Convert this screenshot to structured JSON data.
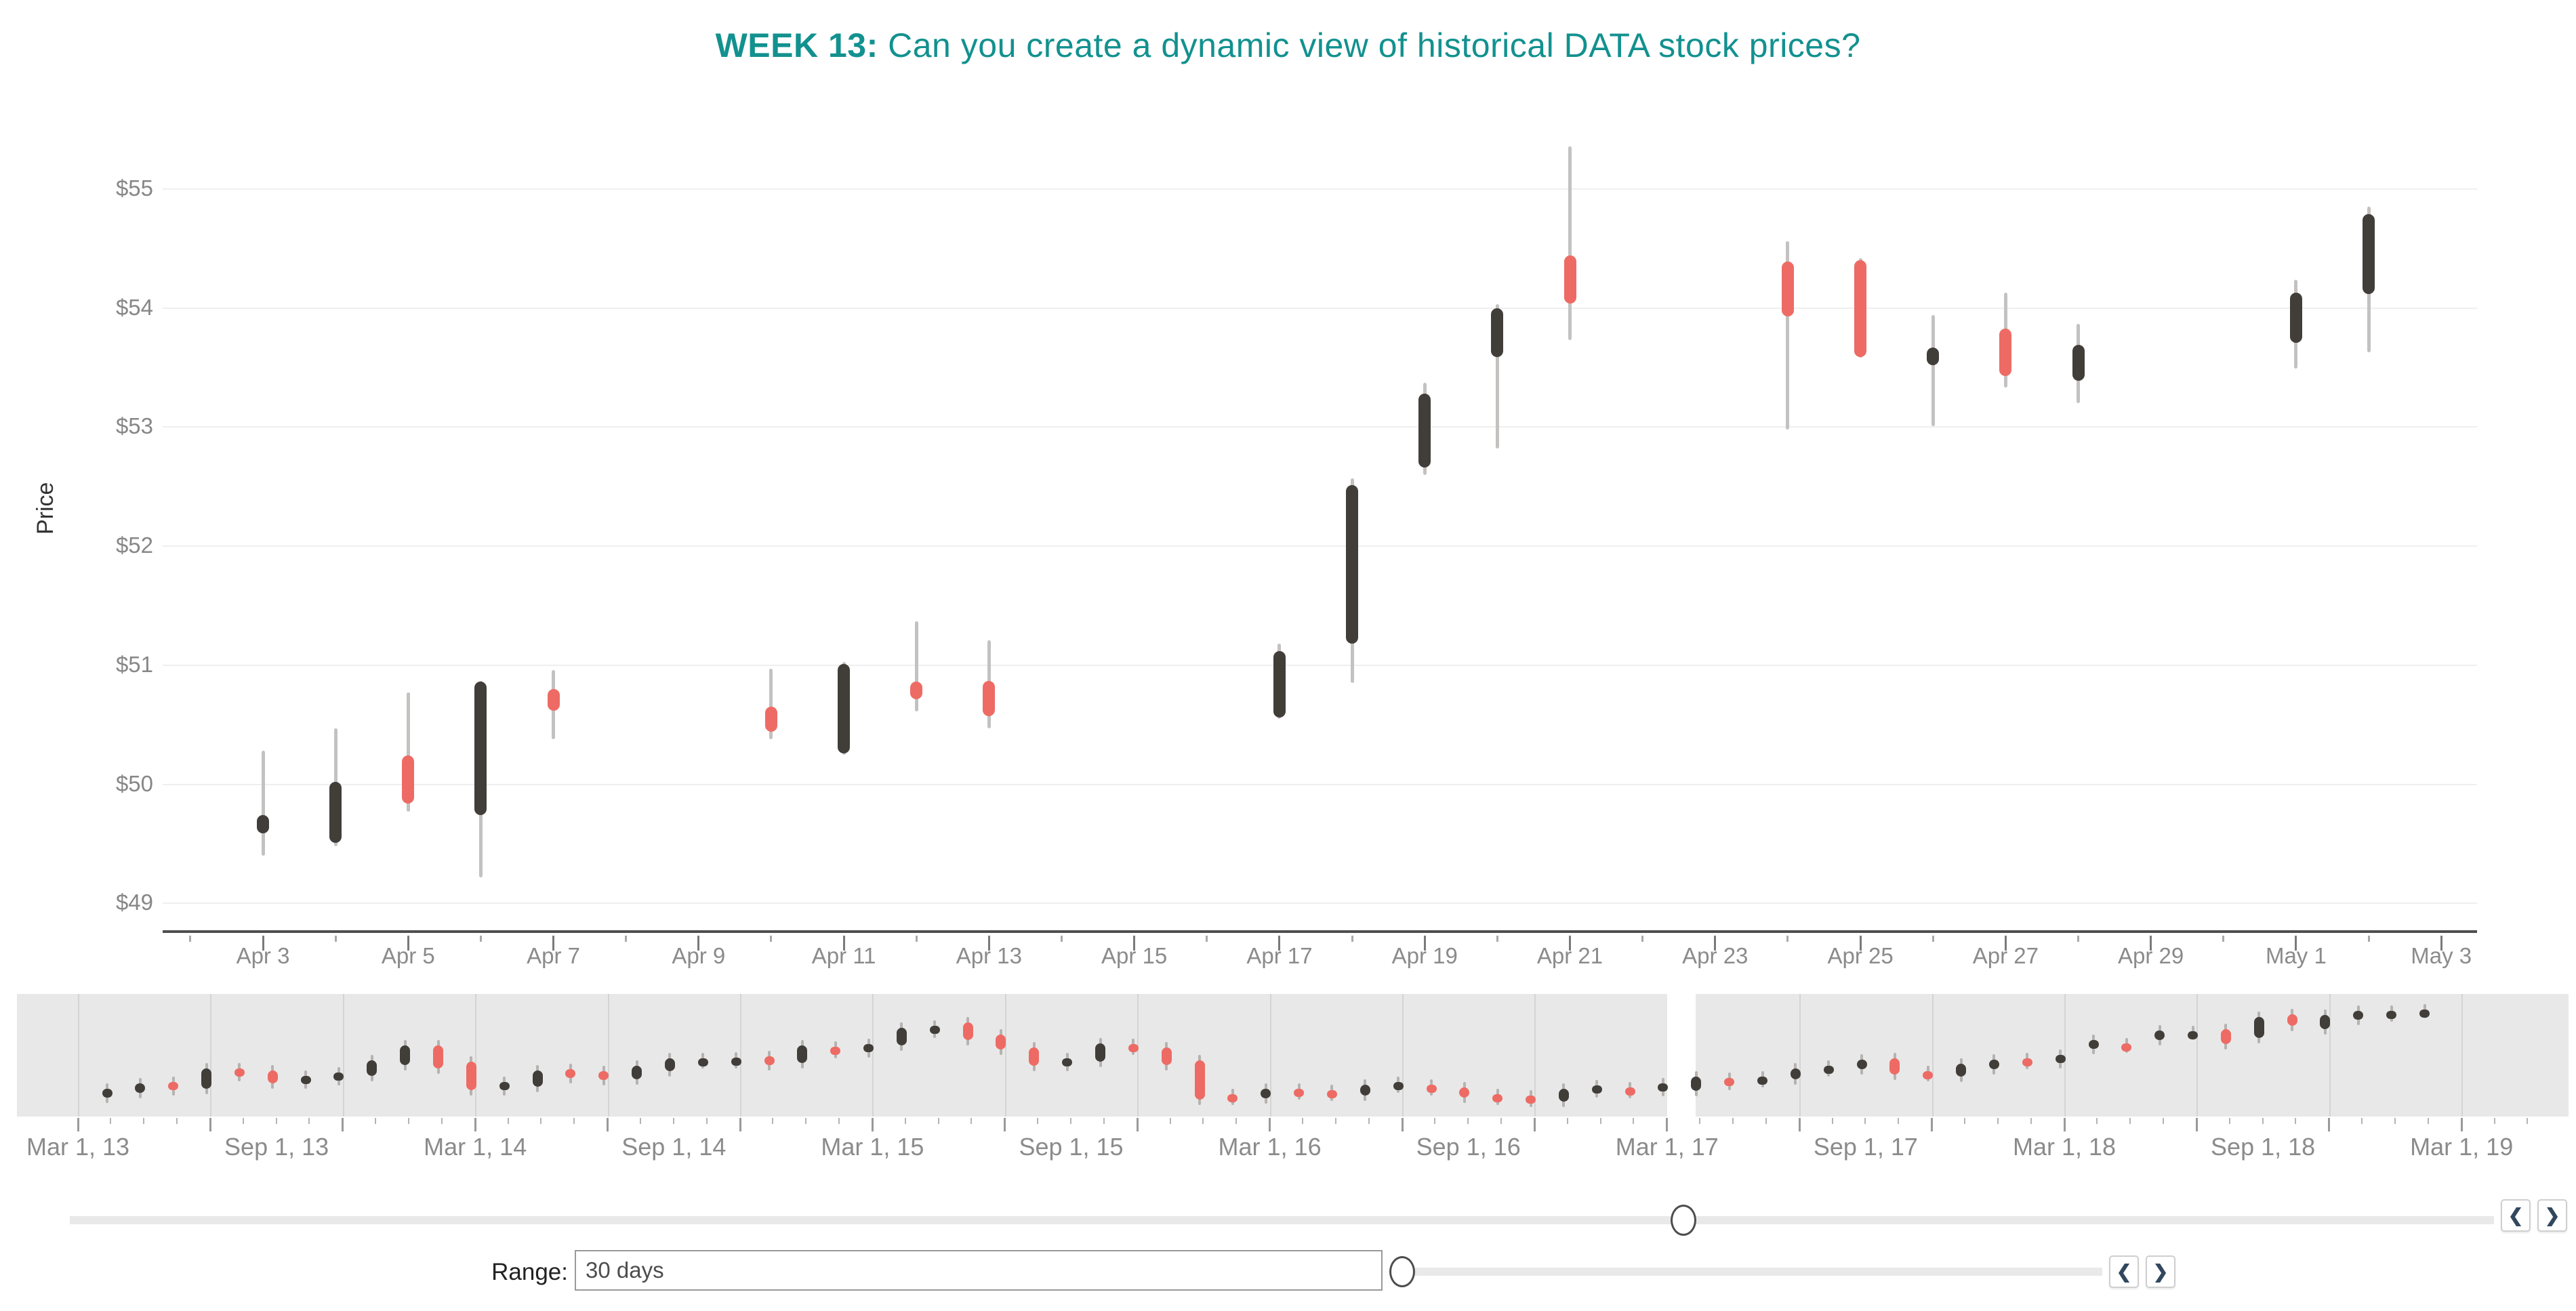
{
  "title": {
    "week_label": "WEEK 13:",
    "question": " Can you create a dynamic view of historical DATA stock prices?"
  },
  "colors": {
    "accent_teal": "#12918f",
    "candle_up": "#413e3a",
    "candle_down": "#ed6b64",
    "wick": "#c4c2c0",
    "grid": "#efefef",
    "axis_line": "#4f4f4f",
    "label_gray": "#8b8b8b",
    "mini_bg": "#e8e8e8",
    "chevron_navy": "#31475e"
  },
  "chart_data": [
    {
      "type": "candlestick",
      "title": "DATA stock daily prices (main view)",
      "ylabel": "Price",
      "ylim": [
        49,
        55.5
      ],
      "y_ticks": [
        "$55",
        "$54",
        "$53",
        "$52",
        "$51",
        "$50",
        "$49"
      ],
      "y_tick_values": [
        55,
        54,
        53,
        52,
        51,
        50,
        49
      ],
      "x_tick_labels": [
        "Apr 3",
        "Apr 5",
        "Apr 7",
        "Apr 9",
        "Apr 11",
        "Apr 13",
        "Apr 15",
        "Apr 17",
        "Apr 19",
        "Apr 21",
        "Apr 23",
        "Apr 25",
        "Apr 27",
        "Apr 29",
        "May 1",
        "May 3"
      ],
      "grid": true,
      "candles": [
        {
          "date": "Apr 3",
          "day": 0,
          "o": 49.59,
          "h": 50.28,
          "l": 49.4,
          "c": 49.74,
          "dir": "up"
        },
        {
          "date": "Apr 4",
          "day": 1,
          "o": 49.51,
          "h": 50.47,
          "l": 49.48,
          "c": 50.02,
          "dir": "up"
        },
        {
          "date": "Apr 5",
          "day": 2,
          "o": 50.24,
          "h": 50.77,
          "l": 49.77,
          "c": 49.84,
          "dir": "down"
        },
        {
          "date": "Apr 6",
          "day": 3,
          "o": 49.74,
          "h": 50.87,
          "l": 49.22,
          "c": 50.86,
          "dir": "up"
        },
        {
          "date": "Apr 7",
          "day": 4,
          "o": 50.8,
          "h": 50.96,
          "l": 50.38,
          "c": 50.62,
          "dir": "down"
        },
        {
          "date": "Apr 10",
          "day": 7,
          "o": 50.65,
          "h": 50.97,
          "l": 50.38,
          "c": 50.44,
          "dir": "down"
        },
        {
          "date": "Apr 11",
          "day": 8,
          "o": 50.26,
          "h": 51.03,
          "l": 50.25,
          "c": 51.01,
          "dir": "up"
        },
        {
          "date": "Apr 12",
          "day": 9,
          "o": 50.86,
          "h": 51.37,
          "l": 50.61,
          "c": 50.84,
          "dir": "down"
        },
        {
          "date": "Apr 13",
          "day": 10,
          "o": 50.87,
          "h": 51.21,
          "l": 50.47,
          "c": 50.57,
          "dir": "down"
        },
        {
          "date": "Apr 17",
          "day": 14,
          "o": 50.56,
          "h": 51.18,
          "l": 50.55,
          "c": 51.12,
          "dir": "up"
        },
        {
          "date": "Apr 18",
          "day": 15,
          "o": 51.18,
          "h": 52.57,
          "l": 50.85,
          "c": 52.51,
          "dir": "up"
        },
        {
          "date": "Apr 19",
          "day": 16,
          "o": 52.66,
          "h": 53.37,
          "l": 52.6,
          "c": 53.28,
          "dir": "up"
        },
        {
          "date": "Apr 20",
          "day": 17,
          "o": 53.59,
          "h": 54.03,
          "l": 52.82,
          "c": 54.0,
          "dir": "up"
        },
        {
          "date": "Apr 21",
          "day": 18,
          "o": 54.44,
          "h": 55.36,
          "l": 53.73,
          "c": 54.04,
          "dir": "down"
        },
        {
          "date": "Apr 24",
          "day": 21,
          "o": 54.39,
          "h": 54.56,
          "l": 52.98,
          "c": 53.93,
          "dir": "down"
        },
        {
          "date": "Apr 25",
          "day": 22,
          "o": 54.4,
          "h": 54.42,
          "l": 53.58,
          "c": 53.59,
          "dir": "down"
        },
        {
          "date": "Apr 26",
          "day": 23,
          "o": 53.56,
          "h": 53.94,
          "l": 53.01,
          "c": 53.67,
          "dir": "up"
        },
        {
          "date": "Apr 27",
          "day": 24,
          "o": 53.83,
          "h": 54.13,
          "l": 53.33,
          "c": 53.43,
          "dir": "down"
        },
        {
          "date": "Apr 28",
          "day": 25,
          "o": 53.39,
          "h": 53.87,
          "l": 53.2,
          "c": 53.69,
          "dir": "up"
        },
        {
          "date": "May 1",
          "day": 28,
          "o": 53.71,
          "h": 54.24,
          "l": 53.49,
          "c": 54.13,
          "dir": "up"
        },
        {
          "date": "May 2",
          "day": 29,
          "o": 54.12,
          "h": 54.85,
          "l": 53.63,
          "c": 54.79,
          "dir": "up"
        }
      ]
    },
    {
      "type": "candlestick",
      "title": "DATA stock monthly overview (Mar 2013 - Mar 2019)",
      "units": "percent-of-panel-height (body low/high)",
      "x_tick_labels": [
        "Mar 1, 13",
        "Sep 1, 13",
        "Mar 1, 14",
        "Sep 1, 14",
        "Mar 1, 15",
        "Sep 1, 15",
        "Mar 1, 16",
        "Sep 1, 16",
        "Mar 1, 17",
        "Sep 1, 17",
        "Mar 1, 18",
        "Sep 1, 18",
        "Mar 1, 19"
      ],
      "candles": [
        {
          "m": "May 13",
          "lo": 12,
          "hi": 20,
          "dir": "up"
        },
        {
          "m": "Jun 13",
          "lo": 16,
          "hi": 25,
          "dir": "up"
        },
        {
          "m": "Jul 13",
          "lo": 19,
          "hi": 26,
          "dir": "down"
        },
        {
          "m": "Aug 13",
          "lo": 20,
          "hi": 39,
          "dir": "up"
        },
        {
          "m": "Sep 13",
          "lo": 32,
          "hi": 39,
          "dir": "down"
        },
        {
          "m": "Oct 13",
          "lo": 25,
          "hi": 37,
          "dir": "down"
        },
        {
          "m": "Nov 13",
          "lo": 25,
          "hi": 32,
          "dir": "up"
        },
        {
          "m": "Dec 13",
          "lo": 28,
          "hi": 35,
          "dir": "up"
        },
        {
          "m": "Jan 14",
          "lo": 32,
          "hi": 46,
          "dir": "up"
        },
        {
          "m": "Feb 14",
          "lo": 42,
          "hi": 60,
          "dir": "up"
        },
        {
          "m": "Mar 14",
          "lo": 39,
          "hi": 60,
          "dir": "down"
        },
        {
          "m": "Apr 14",
          "lo": 19,
          "hi": 45,
          "dir": "down"
        },
        {
          "m": "May 14",
          "lo": 19,
          "hi": 26,
          "dir": "up"
        },
        {
          "m": "Jun 14",
          "lo": 22,
          "hi": 37,
          "dir": "up"
        },
        {
          "m": "Jul 14",
          "lo": 30,
          "hi": 38,
          "dir": "down"
        },
        {
          "m": "Aug 14",
          "lo": 28,
          "hi": 36,
          "dir": "down"
        },
        {
          "m": "Sep 14",
          "lo": 29,
          "hi": 41,
          "dir": "up"
        },
        {
          "m": "Oct 14",
          "lo": 36,
          "hi": 48,
          "dir": "up"
        },
        {
          "m": "Nov 14",
          "lo": 44,
          "hi": 48,
          "dir": "up"
        },
        {
          "m": "Dec 14",
          "lo": 44,
          "hi": 49,
          "dir": "up"
        },
        {
          "m": "Jan 15",
          "lo": 42,
          "hi": 50,
          "dir": "down"
        },
        {
          "m": "Feb 15",
          "lo": 44,
          "hi": 60,
          "dir": "up"
        },
        {
          "m": "Mar 15",
          "lo": 53,
          "hi": 59,
          "dir": "down"
        },
        {
          "m": "Apr 15",
          "lo": 54,
          "hi": 61,
          "dir": "up"
        },
        {
          "m": "May 15",
          "lo": 60,
          "hi": 76,
          "dir": "up"
        },
        {
          "m": "Jun 15",
          "lo": 72,
          "hi": 78,
          "dir": "up"
        },
        {
          "m": "Jul 15",
          "lo": 65,
          "hi": 81,
          "dir": "down"
        },
        {
          "m": "Aug 15",
          "lo": 56,
          "hi": 70,
          "dir": "down"
        },
        {
          "m": "Sep 15",
          "lo": 41,
          "hi": 58,
          "dir": "down"
        },
        {
          "m": "Oct 15",
          "lo": 41,
          "hi": 48,
          "dir": "up"
        },
        {
          "m": "Nov 15",
          "lo": 45,
          "hi": 62,
          "dir": "up"
        },
        {
          "m": "Dec 15",
          "lo": 56,
          "hi": 61,
          "dir": "down"
        },
        {
          "m": "Jan 16",
          "lo": 42,
          "hi": 58,
          "dir": "down"
        },
        {
          "m": "Feb 16",
          "lo": 10,
          "hi": 46,
          "dir": "down"
        },
        {
          "m": "Mar 16",
          "lo": 10,
          "hi": 15,
          "dir": "down"
        },
        {
          "m": "Apr 16",
          "lo": 11,
          "hi": 20,
          "dir": "up"
        },
        {
          "m": "May 16",
          "lo": 15,
          "hi": 20,
          "dir": "down"
        },
        {
          "m": "Jun 16",
          "lo": 14,
          "hi": 19,
          "dir": "down"
        },
        {
          "m": "Jul 16",
          "lo": 14,
          "hi": 24,
          "dir": "up"
        },
        {
          "m": "Aug 16",
          "lo": 21,
          "hi": 26,
          "dir": "up"
        },
        {
          "m": "Sep 16",
          "lo": 19,
          "hi": 24,
          "dir": "down"
        },
        {
          "m": "Oct 16",
          "lo": 12,
          "hi": 21,
          "dir": "down"
        },
        {
          "m": "Nov 16",
          "lo": 10,
          "hi": 15,
          "dir": "down"
        },
        {
          "m": "Dec 16",
          "lo": 8,
          "hi": 14,
          "dir": "down"
        },
        {
          "m": "Jan 17",
          "lo": 8,
          "hi": 20,
          "dir": "up"
        },
        {
          "m": "Feb 17",
          "lo": 17,
          "hi": 23,
          "dir": "up"
        },
        {
          "m": "Mar 17",
          "lo": 16,
          "hi": 21,
          "dir": "down"
        },
        {
          "m": "Apr 17",
          "lo": 18,
          "hi": 25,
          "dir": "up"
        },
        {
          "m": "May 17",
          "lo": 18,
          "hi": 31,
          "dir": "up"
        },
        {
          "m": "Jun 17",
          "lo": 24,
          "hi": 30,
          "dir": "down"
        },
        {
          "m": "Jul 17",
          "lo": 26,
          "hi": 31,
          "dir": "up"
        },
        {
          "m": "Aug 17",
          "lo": 29,
          "hi": 39,
          "dir": "up"
        },
        {
          "m": "Sep 17",
          "lo": 36,
          "hi": 41,
          "dir": "up"
        },
        {
          "m": "Oct 17",
          "lo": 38,
          "hi": 47,
          "dir": "up"
        },
        {
          "m": "Nov 17",
          "lo": 33,
          "hi": 48,
          "dir": "down"
        },
        {
          "m": "Dec 17",
          "lo": 32,
          "hi": 36,
          "dir": "down"
        },
        {
          "m": "Jan 18",
          "lo": 31,
          "hi": 43,
          "dir": "up"
        },
        {
          "m": "Feb 18",
          "lo": 38,
          "hi": 47,
          "dir": "up"
        },
        {
          "m": "Mar 18",
          "lo": 43,
          "hi": 48,
          "dir": "down"
        },
        {
          "m": "Apr 18",
          "lo": 44,
          "hi": 51,
          "dir": "up"
        },
        {
          "m": "May 18",
          "lo": 57,
          "hi": 65,
          "dir": "up"
        },
        {
          "m": "Jun 18",
          "lo": 58,
          "hi": 62,
          "dir": "down"
        },
        {
          "m": "Jul 18",
          "lo": 65,
          "hi": 74,
          "dir": "up"
        },
        {
          "m": "Aug 18",
          "lo": 70,
          "hi": 73,
          "dir": "up"
        },
        {
          "m": "Sep 18",
          "lo": 61,
          "hi": 75,
          "dir": "down"
        },
        {
          "m": "Oct 18",
          "lo": 67,
          "hi": 86,
          "dir": "up"
        },
        {
          "m": "Nov 18",
          "lo": 78,
          "hi": 89,
          "dir": "down"
        },
        {
          "m": "Dec 18",
          "lo": 75,
          "hi": 88,
          "dir": "up"
        },
        {
          "m": "Jan 19",
          "lo": 84,
          "hi": 92,
          "dir": "up"
        },
        {
          "m": "Feb 19",
          "lo": 87,
          "hi": 92,
          "dir": "up"
        },
        {
          "m": "Mar 19",
          "lo": 90,
          "hi": 93,
          "dir": "up"
        }
      ]
    }
  ],
  "controls": {
    "nav": {
      "left_icon": "❮",
      "right_icon": "❯"
    },
    "range": {
      "label": "Range:",
      "value": "30 days"
    }
  }
}
